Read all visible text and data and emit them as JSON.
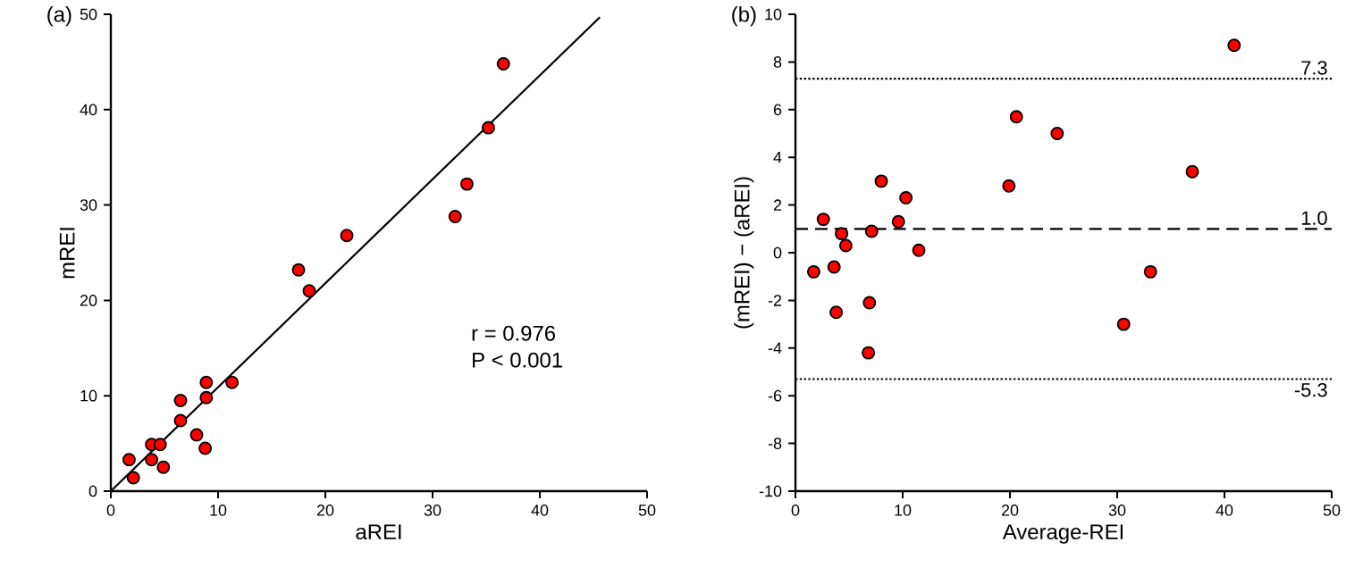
{
  "chart_data": [
    {
      "type": "scatter",
      "title": "(a)",
      "xlabel": "aREI",
      "ylabel": "mREI",
      "xlim": [
        0,
        50
      ],
      "ylim": [
        0,
        50
      ],
      "xticks": [
        0,
        10,
        20,
        30,
        40,
        50
      ],
      "yticks": [
        0,
        10,
        20,
        30,
        40,
        50
      ],
      "marker": "circle",
      "annotations": [
        "r = 0.976",
        "P < 0.001"
      ],
      "series": [
        {
          "color": "#ff0000",
          "x": [
            1.7,
            2.1,
            3.8,
            3.8,
            4.6,
            4.9,
            6.5,
            6.5,
            8.0,
            8.8,
            8.9,
            8.9,
            11.3,
            17.5,
            18.5,
            22.0,
            32.1,
            33.2,
            35.2,
            36.6
          ],
          "values": [
            3.3,
            1.4,
            4.9,
            3.3,
            4.9,
            2.5,
            9.5,
            7.4,
            5.9,
            4.5,
            9.8,
            11.4,
            11.4,
            23.2,
            21.0,
            26.8,
            28.8,
            32.2,
            38.1,
            44.8
          ]
        },
        {
          "type": "line",
          "color": "#000000",
          "marker": "none",
          "line_style": "solid",
          "x": [
            0,
            45.6
          ],
          "values": [
            0,
            49.7
          ]
        }
      ]
    },
    {
      "type": "scatter",
      "title": "(b)",
      "xlabel": "Average-REI",
      "ylabel": "(mREI) − (aREI)",
      "xlim": [
        0,
        50
      ],
      "ylim": [
        -10,
        10
      ],
      "xticks": [
        0,
        10,
        20,
        30,
        40,
        50
      ],
      "yticks": [
        -10,
        -8,
        -6,
        -4,
        -2,
        0,
        2,
        4,
        6,
        8,
        10
      ],
      "marker": "circle",
      "ref_lines": [
        {
          "axis": "y",
          "value": 7.3,
          "label": "7.3",
          "line_style": "dotted",
          "color": "#000000"
        },
        {
          "axis": "y",
          "value": 1.0,
          "label": "1.0",
          "line_style": "dashed",
          "color": "#000000"
        },
        {
          "axis": "y",
          "value": -5.3,
          "label": "-5.3",
          "line_style": "dotted",
          "color": "#000000"
        }
      ],
      "series": [
        {
          "color": "#ff0000",
          "x": [
            1.7,
            2.6,
            3.6,
            4.3,
            4.7,
            3.8,
            6.9,
            6.8,
            7.1,
            8.0,
            9.6,
            10.3,
            11.5,
            19.9,
            20.6,
            24.4,
            30.6,
            33.1,
            37.0,
            40.9
          ],
          "values": [
            -0.8,
            1.4,
            -0.6,
            0.8,
            0.3,
            -2.5,
            -2.1,
            -4.2,
            0.9,
            3.0,
            1.3,
            2.3,
            0.1,
            2.8,
            5.7,
            5.0,
            -3.0,
            -0.8,
            3.4,
            8.7
          ]
        }
      ]
    }
  ]
}
